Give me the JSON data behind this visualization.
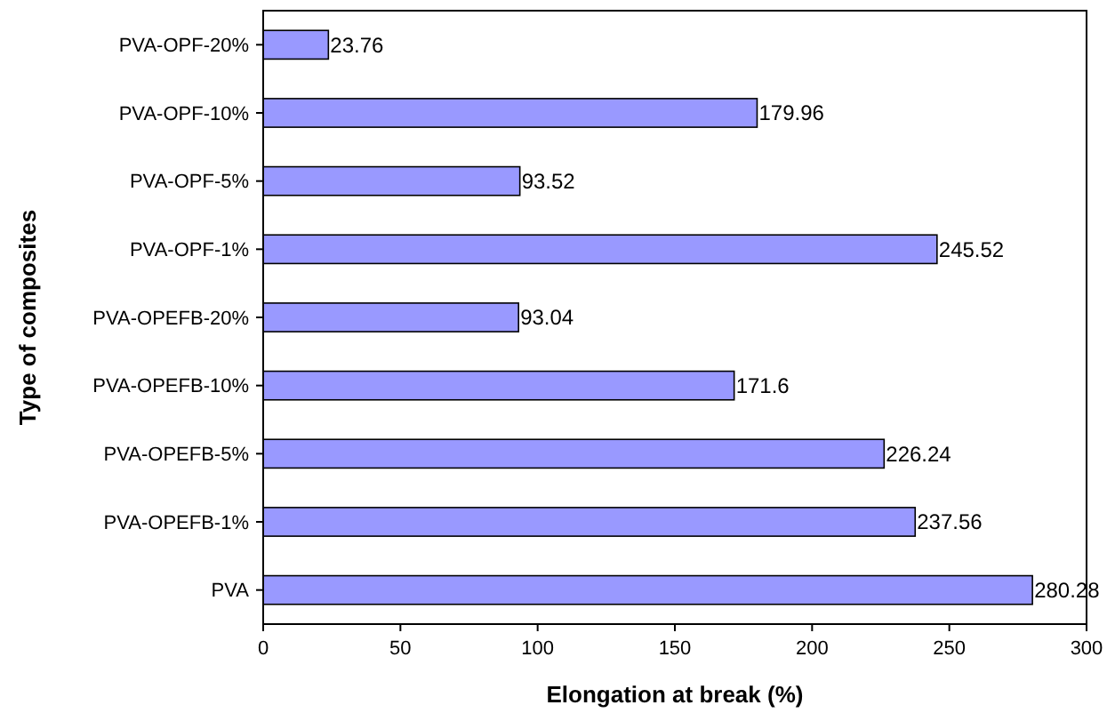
{
  "chart_data": {
    "type": "bar",
    "orientation": "horizontal",
    "xlabel": "Elongation at break (%)",
    "ylabel": "Type of composites",
    "categories": [
      "PVA-OPF-20%",
      "PVA-OPF-10%",
      "PVA-OPF-5%",
      "PVA-OPF-1%",
      "PVA-OPEFB-20%",
      "PVA-OPEFB-10%",
      "PVA-OPEFB-5%",
      "PVA-OPEFB-1%",
      "PVA"
    ],
    "values": [
      23.76,
      179.96,
      93.52,
      245.52,
      93.04,
      171.6,
      226.24,
      237.56,
      280.28
    ],
    "color": "#9999ff",
    "xlim": [
      0,
      300
    ],
    "xticks": [
      0,
      50,
      100,
      150,
      200,
      250,
      300
    ],
    "data_labels": true
  }
}
